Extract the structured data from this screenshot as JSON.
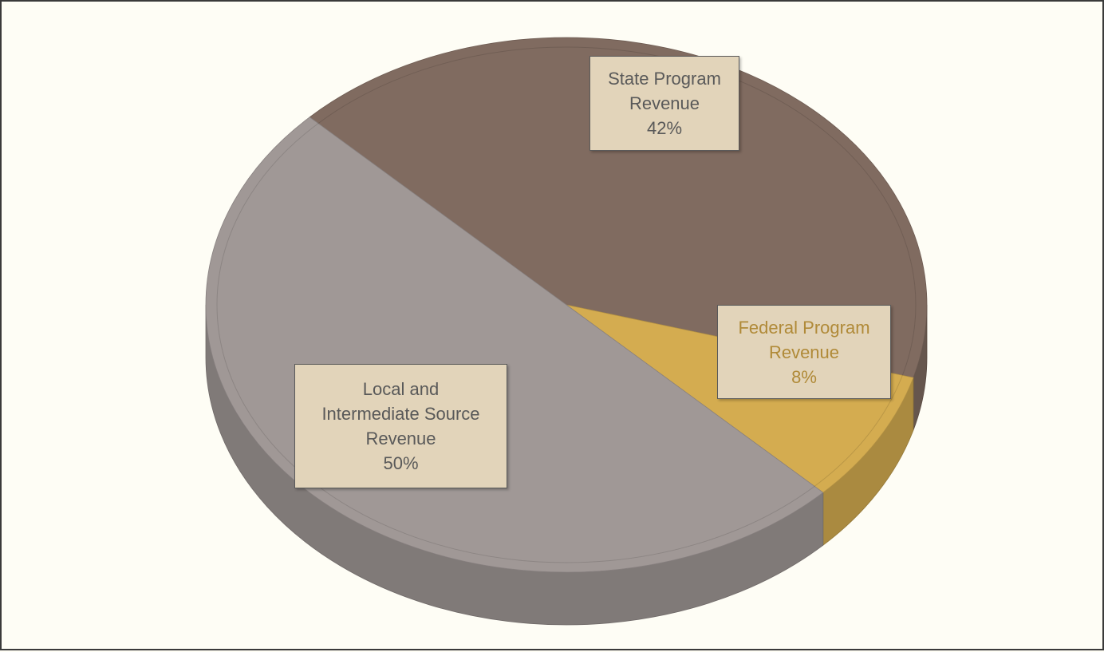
{
  "chart_data": {
    "type": "pie",
    "categories": [
      "State Program Revenue",
      "Federal Program Revenue",
      "Local and Intermediate Source Revenue"
    ],
    "values": [
      42,
      8,
      50
    ],
    "value_labels": [
      "42%",
      "8%",
      "50%"
    ],
    "colors": [
      "#806b60",
      "#d4ac50",
      "#a09896"
    ]
  }
}
